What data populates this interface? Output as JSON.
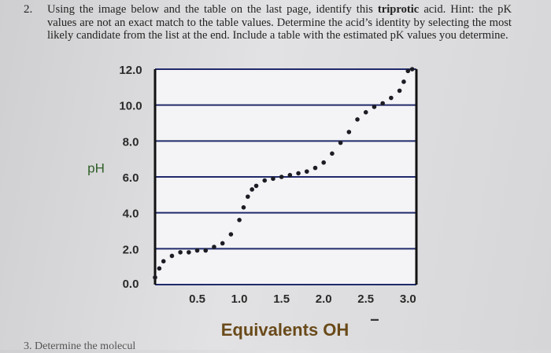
{
  "question": {
    "number": "2.",
    "text_before": "Using the image below and the table on the last page, identify this ",
    "bold": "triprotic",
    "text_after": " acid. Hint: the pK values are not an exact match to the table values. Determine the acid’s identity by selecting the most likely candidate from the list at the end. Include a table with the estimated pK values you determine."
  },
  "chart_data": {
    "type": "scatter",
    "y_label": "pH",
    "x_label": "Equivalents OH",
    "x_label_sup": "−",
    "x": [
      0,
      0.05,
      0.1,
      0.2,
      0.3,
      0.4,
      0.5,
      0.6,
      0.7,
      0.8,
      0.9,
      1.0,
      1.05,
      1.1,
      1.15,
      1.2,
      1.3,
      1.4,
      1.5,
      1.6,
      1.7,
      1.8,
      1.9,
      2.0,
      2.1,
      2.2,
      2.3,
      2.4,
      2.5,
      2.6,
      2.7,
      2.8,
      2.9,
      2.95,
      3.0,
      3.05
    ],
    "series": [
      {
        "name": "pH",
        "color": "#1c1c24",
        "values": [
          0.4,
          0.9,
          1.3,
          1.6,
          1.8,
          1.8,
          1.9,
          1.9,
          2.1,
          2.3,
          2.8,
          3.6,
          4.3,
          4.9,
          5.3,
          5.5,
          5.8,
          5.9,
          6.0,
          6.1,
          6.2,
          6.3,
          6.5,
          6.8,
          7.3,
          7.9,
          8.5,
          9.2,
          9.6,
          9.9,
          10.1,
          10.4,
          10.8,
          11.3,
          11.9,
          12.0
        ]
      }
    ],
    "xlim": [
      0,
      3.1
    ],
    "ylim": [
      0,
      12
    ],
    "xticks": [
      0.5,
      {
        "value": 1,
        "label": "1.0"
      },
      1.5,
      {
        "value": 2,
        "label": "2.0"
      },
      2.5,
      {
        "value": 3,
        "label": "3.0"
      }
    ],
    "yticks": [
      {
        "value": 0,
        "label": "0.0"
      },
      {
        "value": 2,
        "label": "2.0"
      },
      {
        "value": 4,
        "label": "4.0"
      },
      {
        "value": 6,
        "label": "6.0"
      },
      {
        "value": 8,
        "label": "8.0"
      },
      {
        "value": 10,
        "label": "10.0"
      },
      {
        "value": 12,
        "label": "12.0"
      }
    ],
    "grid": true
  },
  "next_question": {
    "number": "3.",
    "text": "Determine the molecul"
  }
}
